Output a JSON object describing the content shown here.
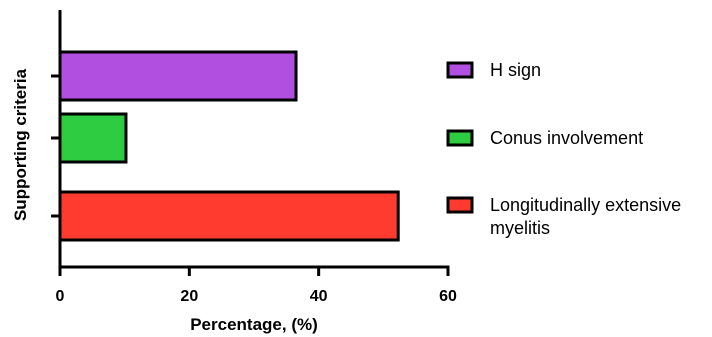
{
  "chart_data": {
    "type": "bar",
    "orientation": "horizontal",
    "xlabel": "Percentage, (%)",
    "ylabel": "Supporting criteria",
    "xlim": [
      0,
      60
    ],
    "xticks": [
      0,
      20,
      40,
      60
    ],
    "grid": false,
    "legend_position": "right",
    "bars": [
      {
        "key": "h_sign",
        "label": "H sign",
        "value": 36.5,
        "color": "#b04fe0"
      },
      {
        "key": "conus",
        "label": "Conus involvement",
        "value": 10.2,
        "color": "#2ecc40"
      },
      {
        "key": "letm",
        "label": "Longitudinally extensive myelitis",
        "label_lines": [
          "Longitudinally extensive",
          "myelitis"
        ],
        "value": 52.3,
        "color": "#ff3b2f"
      }
    ]
  }
}
